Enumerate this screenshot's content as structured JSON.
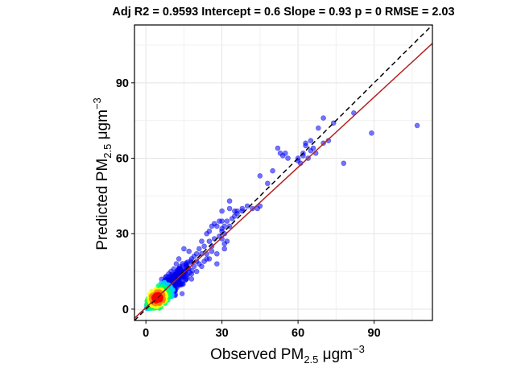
{
  "chart_data": {
    "type": "scatter",
    "title": "Adj R2 =  0.9593 Intercept = 0.6  Slope = 0.93  p = 0  RMSE = 2.03",
    "xlabel": {
      "main": "Observed  PM",
      "sub": "2.5",
      "unit": "  μgm",
      "sup": "−3"
    },
    "ylabel": {
      "main": "Predicted  PM",
      "sub": "2.5",
      "unit": "  μgm",
      "sup": "−3"
    },
    "xlim": [
      -4.5,
      113
    ],
    "ylim": [
      -4.5,
      113
    ],
    "xticks": [
      0,
      30,
      60,
      90
    ],
    "yticks": [
      0,
      30,
      60,
      90
    ],
    "x_tick_labels": [
      "0",
      "30",
      "60",
      "90"
    ],
    "y_tick_labels": [
      "0",
      "30",
      "60",
      "90"
    ],
    "grid": true,
    "identity_line": {
      "slope": 1,
      "intercept": 0,
      "style": "dashed",
      "color": "#000000"
    },
    "fit_line": {
      "slope": 0.93,
      "intercept": 0.6,
      "color": "#b22222"
    },
    "point_color_scale": [
      "#0000ff",
      "#00ccff",
      "#00ff66",
      "#ffff00",
      "#ff8800",
      "#ff0000"
    ],
    "points_outliers": [
      [
        107,
        73
      ],
      [
        89,
        70
      ],
      [
        82,
        78
      ],
      [
        78,
        58
      ],
      [
        74,
        74
      ],
      [
        72,
        67
      ],
      [
        70,
        66
      ],
      [
        70,
        76
      ],
      [
        68,
        72
      ],
      [
        67,
        62
      ],
      [
        66,
        64
      ],
      [
        65,
        63
      ],
      [
        64,
        60
      ],
      [
        62,
        62
      ],
      [
        61,
        58
      ],
      [
        63,
        66
      ],
      [
        65,
        67
      ],
      [
        63,
        65
      ],
      [
        60,
        60
      ],
      [
        62,
        61
      ],
      [
        60,
        59
      ],
      [
        52,
        64
      ],
      [
        56,
        60
      ],
      [
        54,
        61
      ],
      [
        55,
        62
      ],
      [
        50,
        55
      ],
      [
        53,
        62
      ],
      [
        48,
        50
      ],
      [
        45,
        53
      ],
      [
        42,
        40
      ],
      [
        40,
        41
      ],
      [
        38,
        40
      ],
      [
        36,
        38
      ],
      [
        35,
        39
      ],
      [
        33,
        40
      ],
      [
        32,
        35
      ],
      [
        31,
        30
      ],
      [
        30,
        39
      ],
      [
        30,
        35
      ],
      [
        29,
        35
      ],
      [
        28,
        33
      ],
      [
        30,
        32
      ],
      [
        27,
        34
      ],
      [
        26,
        33
      ],
      [
        25,
        31
      ],
      [
        24,
        30
      ],
      [
        25,
        27
      ],
      [
        26,
        25
      ],
      [
        22,
        27
      ],
      [
        23,
        25
      ],
      [
        21,
        24
      ],
      [
        33,
        43
      ],
      [
        34,
        36
      ],
      [
        35,
        37
      ],
      [
        30,
        31
      ],
      [
        31,
        26
      ],
      [
        28,
        22
      ],
      [
        32,
        27
      ],
      [
        26,
        23
      ],
      [
        24,
        22
      ],
      [
        22,
        22
      ],
      [
        20,
        22
      ],
      [
        19,
        21
      ],
      [
        18,
        20
      ],
      [
        17,
        23
      ],
      [
        15,
        24
      ],
      [
        13,
        20
      ],
      [
        12,
        18
      ],
      [
        16,
        18
      ],
      [
        14,
        15
      ],
      [
        21,
        18
      ],
      [
        23,
        19
      ],
      [
        24,
        20
      ],
      [
        29,
        29
      ],
      [
        27,
        28
      ],
      [
        44,
        40
      ],
      [
        45,
        41
      ],
      [
        38,
        39
      ],
      [
        36,
        39
      ],
      [
        33,
        33
      ],
      [
        31,
        33
      ],
      [
        30,
        28
      ],
      [
        31,
        24
      ],
      [
        28,
        18
      ],
      [
        25,
        20
      ],
      [
        22,
        17
      ],
      [
        20,
        15
      ],
      [
        18,
        14
      ],
      [
        17,
        16
      ],
      [
        15,
        14
      ],
      [
        13,
        11
      ],
      [
        11,
        16
      ],
      [
        9,
        14
      ],
      [
        9,
        11
      ],
      [
        8,
        13
      ],
      [
        10,
        9
      ],
      [
        11,
        11
      ],
      [
        12,
        13
      ],
      [
        14,
        10
      ],
      [
        16,
        12
      ],
      [
        18,
        12
      ],
      [
        19,
        17
      ],
      [
        20,
        19
      ]
    ],
    "density_cloud": {
      "center": [
        7,
        7
      ],
      "spread": 4.5,
      "count": 900
    }
  }
}
